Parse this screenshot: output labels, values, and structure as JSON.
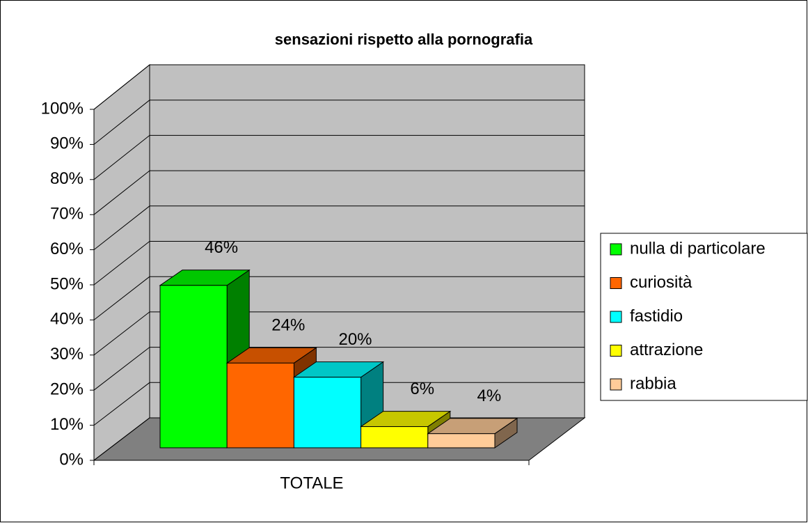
{
  "chart_data": {
    "type": "bar",
    "title": "sensazioni rispetto alla pornografia",
    "categories": [
      "TOTALE"
    ],
    "series": [
      {
        "name": "nulla di particolare",
        "color": "#00ff00",
        "values": [
          46
        ],
        "value_labels": [
          "46%"
        ]
      },
      {
        "name": "curiosità",
        "color": "#ff6600",
        "values": [
          24
        ],
        "value_labels": [
          "24%"
        ]
      },
      {
        "name": "fastidio",
        "color": "#00ffff",
        "values": [
          20
        ],
        "value_labels": [
          "20%"
        ]
      },
      {
        "name": "attrazione",
        "color": "#ffff00",
        "values": [
          6
        ],
        "value_labels": [
          "6%"
        ]
      },
      {
        "name": "rabbia",
        "color": "#ffcc99",
        "values": [
          4
        ],
        "value_labels": [
          "4%"
        ]
      }
    ],
    "ylim": [
      0,
      100
    ],
    "yticks": [
      {
        "value": 0,
        "label": "0%"
      },
      {
        "value": 10,
        "label": "10%"
      },
      {
        "value": 20,
        "label": "20%"
      },
      {
        "value": 30,
        "label": "30%"
      },
      {
        "value": 40,
        "label": "40%"
      },
      {
        "value": 50,
        "label": "50%"
      },
      {
        "value": 60,
        "label": "60%"
      },
      {
        "value": 70,
        "label": "70%"
      },
      {
        "value": 80,
        "label": "80%"
      },
      {
        "value": 90,
        "label": "90%"
      },
      {
        "value": 100,
        "label": "100%"
      }
    ],
    "grid": true,
    "legend": "right"
  }
}
